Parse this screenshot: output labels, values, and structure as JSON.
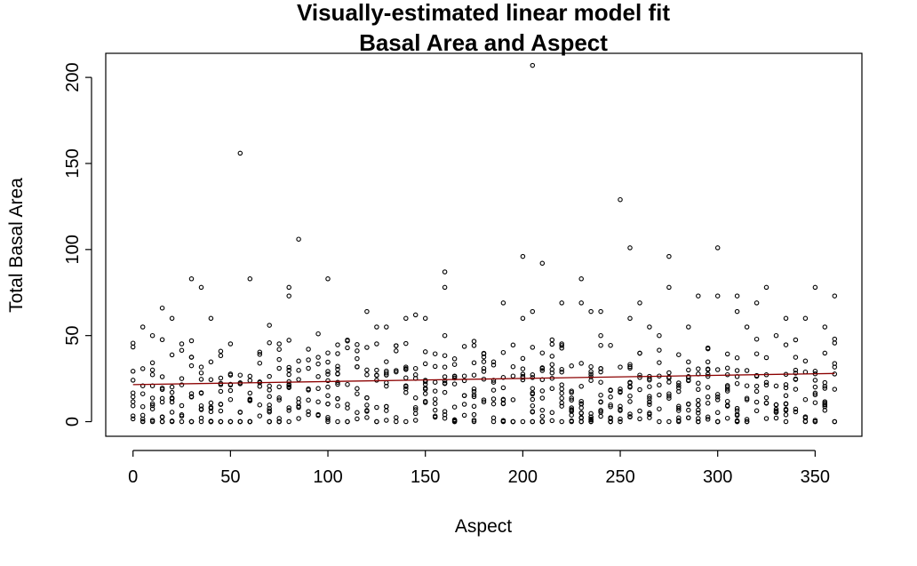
{
  "chart_data": {
    "type": "scatter",
    "title_line1": "Visually-estimated linear model fit",
    "title_line2": "Basal Area and Aspect",
    "xlabel": "Aspect",
    "ylabel": "Total Basal Area",
    "xlim": [
      -14,
      374
    ],
    "ylim": [
      -8.5,
      214
    ],
    "x_ticks": [
      0,
      50,
      100,
      150,
      200,
      250,
      300,
      350
    ],
    "y_ticks": [
      0,
      50,
      100,
      150,
      200
    ],
    "grid": false,
    "legend": "none",
    "point_color": "#000000",
    "fit_line": {
      "color": "#8b0000",
      "x": [
        0,
        360
      ],
      "y": [
        21.5,
        28
      ]
    },
    "outliers": [
      [
        55,
        156
      ],
      [
        85,
        106
      ],
      [
        205,
        207
      ],
      [
        250,
        129
      ],
      [
        255,
        101
      ],
      [
        300,
        101
      ],
      [
        200,
        96
      ],
      [
        275,
        96
      ],
      [
        210,
        92
      ],
      [
        160,
        87
      ],
      [
        30,
        83
      ],
      [
        60,
        83
      ],
      [
        100,
        83
      ],
      [
        230,
        83
      ],
      [
        35,
        78
      ],
      [
        80,
        78
      ],
      [
        160,
        78
      ],
      [
        275,
        78
      ],
      [
        325,
        78
      ],
      [
        350,
        78
      ],
      [
        80,
        73
      ],
      [
        290,
        73
      ],
      [
        300,
        73
      ],
      [
        310,
        73
      ],
      [
        360,
        73
      ],
      [
        190,
        69
      ],
      [
        220,
        69
      ],
      [
        260,
        69
      ],
      [
        320,
        69
      ],
      [
        15,
        66
      ],
      [
        120,
        64
      ],
      [
        205,
        64
      ],
      [
        235,
        64
      ],
      [
        240,
        64
      ],
      [
        310,
        64
      ],
      [
        20,
        60
      ],
      [
        40,
        60
      ],
      [
        140,
        60
      ],
      [
        145,
        62
      ],
      [
        150,
        60
      ],
      [
        200,
        60
      ],
      [
        255,
        60
      ],
      [
        335,
        60
      ],
      [
        345,
        60
      ],
      [
        70,
        56
      ],
      [
        230,
        69
      ],
      [
        5,
        55
      ],
      [
        125,
        55
      ],
      [
        130,
        55
      ],
      [
        265,
        55
      ],
      [
        285,
        55
      ],
      [
        315,
        55
      ],
      [
        355,
        55
      ],
      [
        10,
        50
      ],
      [
        95,
        51
      ],
      [
        160,
        50
      ],
      [
        240,
        50
      ],
      [
        270,
        50
      ],
      [
        330,
        50
      ],
      [
        360,
        48
      ]
    ]
  }
}
